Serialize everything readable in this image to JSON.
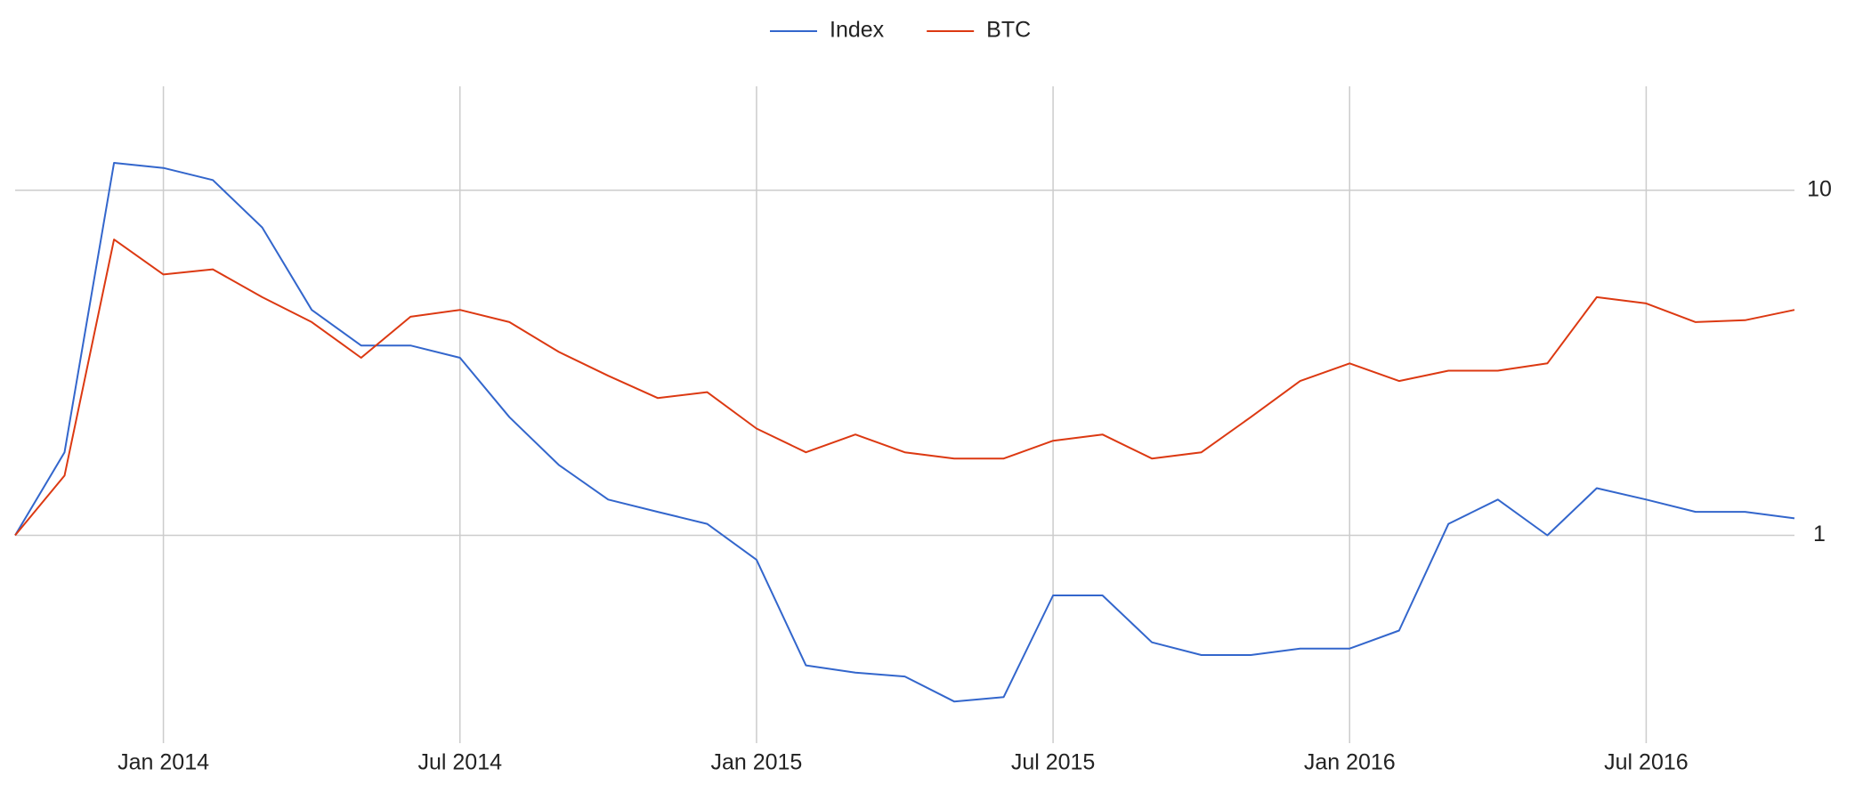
{
  "chart_data": {
    "type": "line",
    "x": [
      "2013-10",
      "2013-11",
      "2013-12",
      "2014-01",
      "2014-02",
      "2014-03",
      "2014-04",
      "2014-05",
      "2014-06",
      "2014-07",
      "2014-08",
      "2014-09",
      "2014-10",
      "2014-11",
      "2014-12",
      "2015-01",
      "2015-02",
      "2015-03",
      "2015-04",
      "2015-05",
      "2015-06",
      "2015-07",
      "2015-08",
      "2015-09",
      "2015-10",
      "2015-11",
      "2015-12",
      "2016-01",
      "2016-02",
      "2016-03",
      "2016-04",
      "2016-05",
      "2016-06",
      "2016-07",
      "2016-08",
      "2016-09",
      "2016-10"
    ],
    "series": [
      {
        "name": "Index",
        "color": "#3366cc",
        "values": [
          1.0,
          1.74,
          12,
          11.6,
          10.7,
          7.8,
          4.5,
          3.55,
          3.55,
          3.27,
          2.2,
          1.6,
          1.27,
          1.17,
          1.08,
          0.85,
          0.42,
          0.4,
          0.39,
          0.33,
          0.34,
          0.67,
          0.67,
          0.49,
          0.45,
          0.45,
          0.47,
          0.47,
          0.53,
          1.08,
          1.27,
          1.0,
          1.37,
          1.27,
          1.17,
          1.17,
          1.12
        ]
      },
      {
        "name": "BTC",
        "color": "#dc3912",
        "values": [
          1.0,
          1.49,
          7.2,
          5.7,
          5.9,
          4.9,
          4.15,
          3.27,
          4.3,
          4.5,
          4.15,
          3.4,
          2.9,
          2.5,
          2.6,
          2.04,
          1.74,
          1.96,
          1.74,
          1.67,
          1.67,
          1.88,
          1.96,
          1.67,
          1.74,
          2.2,
          2.8,
          3.15,
          2.8,
          3.0,
          3.0,
          3.15,
          4.9,
          4.7,
          4.15,
          4.2,
          4.5
        ]
      }
    ],
    "xlim": [
      "2013-10",
      "2016-10"
    ],
    "xticks": [
      {
        "value": "2014-01",
        "label": "Jan 2014"
      },
      {
        "value": "2014-07",
        "label": "Jul 2014"
      },
      {
        "value": "2015-01",
        "label": "Jan 2015"
      },
      {
        "value": "2015-07",
        "label": "Jul 2015"
      },
      {
        "value": "2016-01",
        "label": "Jan 2016"
      },
      {
        "value": "2016-07",
        "label": "Jul 2016"
      }
    ],
    "ylim": [
      0.25,
      20
    ],
    "yticks": [
      1,
      10
    ],
    "log_y": true,
    "grid": true,
    "legend": "top"
  }
}
